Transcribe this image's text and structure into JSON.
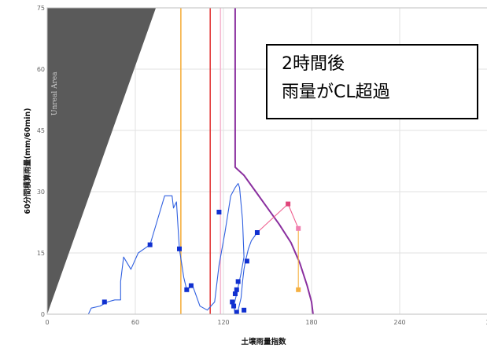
{
  "chart_data": {
    "type": "line",
    "xlabel": "土壌雨量指数",
    "ylabel": "60分間積算雨量(mm/60min)",
    "xlim": [
      0,
      300
    ],
    "ylim": [
      0,
      75
    ],
    "x_ticks": [
      "0",
      "60",
      "120",
      "180",
      "240",
      "3"
    ],
    "y_ticks": [
      "0",
      "15",
      "30",
      "45",
      "60",
      "75"
    ],
    "grid": true,
    "unreal_area": {
      "label": "Unreal Area",
      "color": "#5a5a5a",
      "polygon": [
        [
          0,
          0
        ],
        [
          0,
          75
        ],
        [
          74,
          75
        ]
      ]
    },
    "vertical_lines": [
      {
        "x": 91,
        "color": "#f5b041"
      },
      {
        "x": 111,
        "color": "#e23b3b"
      },
      {
        "x": 118,
        "color": "#f5b8d0"
      }
    ],
    "cl_curve": {
      "color": "#8a2f9f",
      "points": [
        [
          128,
          75
        ],
        [
          128,
          36
        ],
        [
          134,
          34
        ],
        [
          142,
          30
        ],
        [
          150,
          26
        ],
        [
          158,
          22
        ],
        [
          166,
          17.5
        ],
        [
          172,
          12.5
        ],
        [
          177,
          7
        ],
        [
          180,
          3
        ],
        [
          181,
          0
        ]
      ]
    },
    "series": [
      {
        "color": "#3060e0",
        "points": [
          [
            28,
            0
          ],
          [
            30,
            1.5
          ],
          [
            36,
            2
          ],
          [
            41,
            3
          ],
          [
            46,
            3.5
          ],
          [
            50,
            3.5
          ],
          [
            50,
            8
          ],
          [
            52,
            14
          ],
          [
            57,
            11
          ],
          [
            62,
            15
          ],
          [
            70,
            17
          ],
          [
            75,
            23
          ],
          [
            80,
            29
          ],
          [
            85,
            29
          ],
          [
            86,
            26
          ],
          [
            88,
            27.5
          ],
          [
            90,
            16
          ],
          [
            93,
            9
          ],
          [
            95,
            6
          ],
          [
            97,
            6.5
          ],
          [
            99,
            7
          ],
          [
            104,
            2
          ],
          [
            109,
            1
          ],
          [
            114,
            3
          ],
          [
            117,
            12
          ],
          [
            121,
            20
          ],
          [
            125,
            29
          ],
          [
            128,
            31
          ],
          [
            130,
            32
          ],
          [
            131,
            31
          ],
          [
            133,
            23
          ],
          [
            134,
            14
          ],
          [
            132,
            10
          ],
          [
            129,
            5
          ],
          [
            127,
            2
          ],
          [
            128,
            0
          ],
          [
            130,
            1
          ],
          [
            132,
            4
          ],
          [
            133,
            8
          ],
          [
            134,
            11
          ],
          [
            135,
            13
          ],
          [
            137,
            16
          ],
          [
            139,
            18
          ],
          [
            143,
            20
          ]
        ]
      },
      {
        "color": "#f06090",
        "points": [
          [
            143,
            20
          ],
          [
            164,
            27
          ],
          [
            171,
            21
          ]
        ]
      },
      {
        "color": "#f5b041",
        "points": [
          [
            171,
            21
          ],
          [
            171,
            6
          ]
        ]
      }
    ],
    "markers": [
      {
        "x": 39,
        "y": 3,
        "color": "#1030d0"
      },
      {
        "x": 70,
        "y": 17,
        "color": "#1030d0"
      },
      {
        "x": 90,
        "y": 16,
        "color": "#1030d0"
      },
      {
        "x": 95,
        "y": 6,
        "color": "#1030d0"
      },
      {
        "x": 98,
        "y": 7,
        "color": "#1030d0"
      },
      {
        "x": 117,
        "y": 25,
        "color": "#1030d0"
      },
      {
        "x": 126,
        "y": 3,
        "color": "#1030d0"
      },
      {
        "x": 127,
        "y": 2,
        "color": "#1030d0"
      },
      {
        "x": 128,
        "y": 5,
        "color": "#1030d0"
      },
      {
        "x": 129,
        "y": 6,
        "color": "#1030d0"
      },
      {
        "x": 130,
        "y": 8,
        "color": "#1030d0"
      },
      {
        "x": 129,
        "y": 0.5,
        "color": "#1030d0"
      },
      {
        "x": 134,
        "y": 1,
        "color": "#1030d0"
      },
      {
        "x": 136,
        "y": 13,
        "color": "#1030d0"
      },
      {
        "x": 143,
        "y": 20,
        "color": "#1030d0"
      },
      {
        "x": 164,
        "y": 27,
        "color": "#e0457a"
      },
      {
        "x": 171,
        "y": 21,
        "color": "#f080b0"
      },
      {
        "x": 171,
        "y": 6,
        "color": "#f5b041"
      }
    ]
  },
  "callout": {
    "line1": "2時間後",
    "line2": "雨量がCL超過"
  }
}
